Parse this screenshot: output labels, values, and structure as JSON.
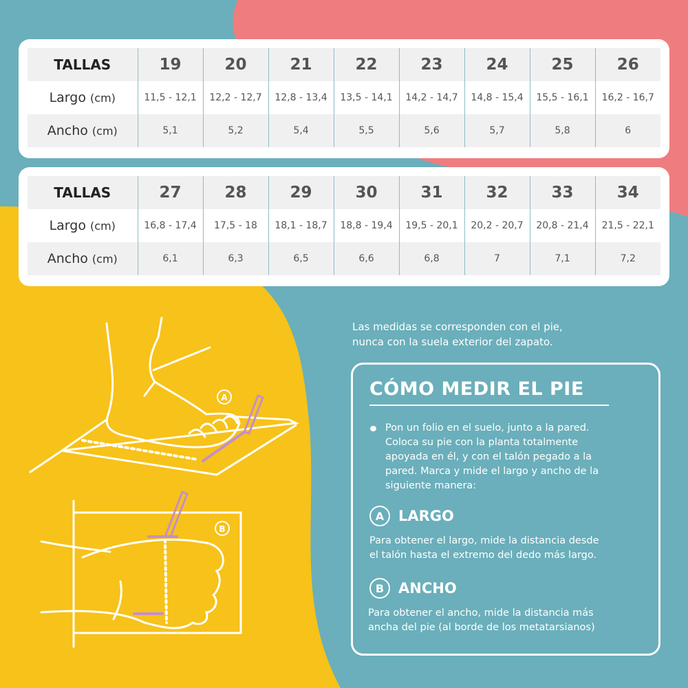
{
  "colors": {
    "teal": "#6aafbb",
    "pink": "#ef7d7f",
    "yellow": "#f7c219",
    "pencil": "#c58fc8"
  },
  "tables": [
    {
      "header": "TALLAS",
      "sizes": [
        "19",
        "20",
        "21",
        "22",
        "23",
        "24",
        "25",
        "26"
      ],
      "largo_label": "Largo",
      "largo_unit": "(cm)",
      "largo": [
        "11,5 - 12,1",
        "12,2 - 12,7",
        "12,8 - 13,4",
        "13,5 - 14,1",
        "14,2 - 14,7",
        "14,8 - 15,4",
        "15,5 - 16,1",
        "16,2 - 16,7"
      ],
      "ancho_label": "Ancho",
      "ancho_unit": "(cm)",
      "ancho": [
        "5,1",
        "5,2",
        "5,4",
        "5,5",
        "5,6",
        "5,7",
        "5,8",
        "6"
      ]
    },
    {
      "header": "TALLAS",
      "sizes": [
        "27",
        "28",
        "29",
        "30",
        "31",
        "32",
        "33",
        "34"
      ],
      "largo_label": "Largo",
      "largo_unit": "(cm)",
      "largo": [
        "16,8 - 17,4",
        "17,5 - 18",
        "18,1 - 18,7",
        "18,8 - 19,4",
        "19,5 - 20,1",
        "20,2 - 20,7",
        "20,8 - 21,4",
        "21,5 - 22,1"
      ],
      "ancho_label": "Ancho",
      "ancho_unit": "(cm)",
      "ancho": [
        "6,1",
        "6,3",
        "6,5",
        "6,6",
        "6,8",
        "7",
        "7,1",
        "7,2"
      ]
    }
  ],
  "note": [
    "Las medidas se corresponden con el pie,",
    "nunca con la suela exterior del zapato."
  ],
  "howto": {
    "title": "CÓMO MEDIR EL PIE",
    "intro": [
      "Pon un folio en el suelo, junto a la pared.",
      "Coloca su pie con la planta totalmente",
      "apoyada en él, y con el talón pegado a la",
      "pared. Marca y mide el largo y ancho de la",
      "siguiente manera:"
    ],
    "a_letter": "A",
    "a_title": "LARGO",
    "a_text": [
      "Para obtener el largo, mide la distancia desde",
      "el talón hasta el extremo del dedo más largo."
    ],
    "b_letter": "B",
    "b_title": "ANCHO",
    "b_text": [
      "Para obtener el ancho, mide la distancia más",
      "ancha del pie (al borde de los metatarsianos)"
    ]
  },
  "illustration": {
    "label_a": "A",
    "label_b": "B"
  }
}
